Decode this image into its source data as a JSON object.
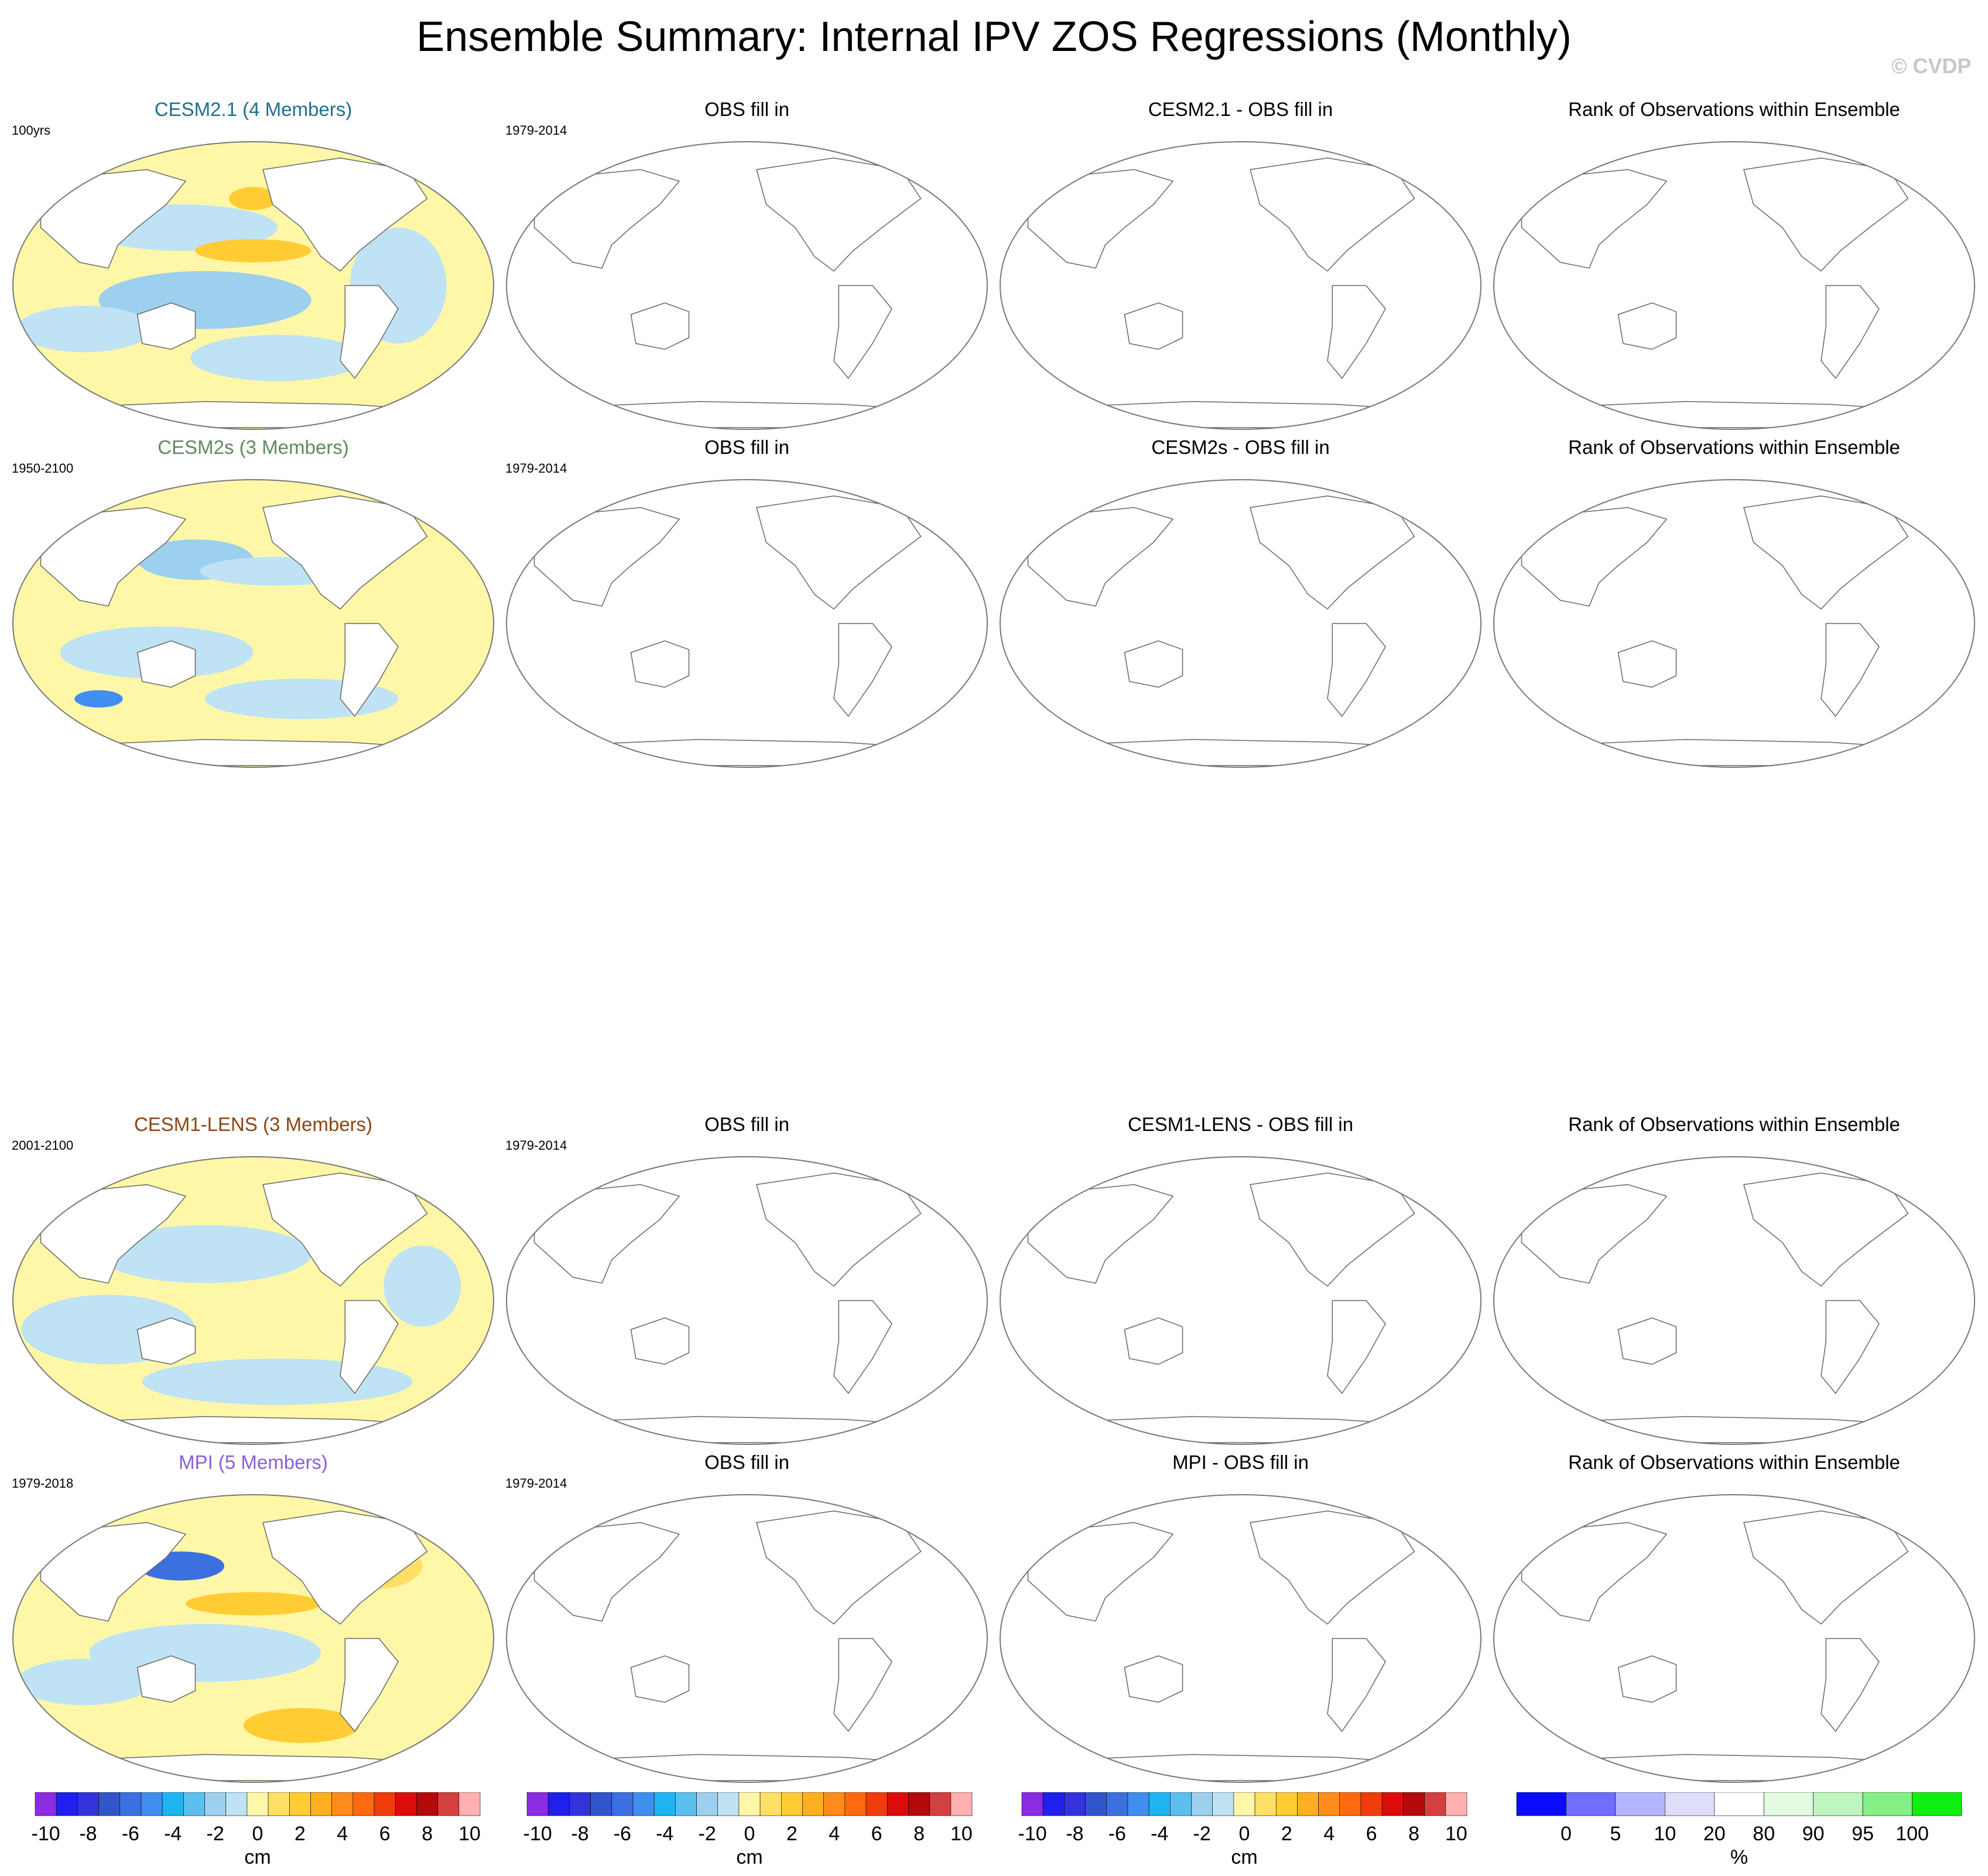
{
  "title": "Ensemble Summary: Internal IPV ZOS Regressions (Monthly)",
  "copyright": "© CVDP",
  "rows": [
    {
      "ensemble": {
        "title": "CESM2.1 (4 Members)",
        "color": "#1f6f8f",
        "period": "100yrs"
      },
      "obs": {
        "title": "OBS fill in",
        "period": "1979-2014"
      },
      "diff": {
        "title": "CESM2.1 - OBS fill in"
      },
      "rank": {
        "title": "Rank of Observations within Ensemble"
      }
    },
    {
      "ensemble": {
        "title": "CESM2s (3 Members)",
        "color": "#5f8a62",
        "period": "1950-2100"
      },
      "obs": {
        "title": "OBS fill in",
        "period": "1979-2014"
      },
      "diff": {
        "title": "CESM2s - OBS fill in"
      },
      "rank": {
        "title": "Rank of Observations within Ensemble"
      }
    },
    {
      "ensemble": {
        "title": "CESM1-LENS (3 Members)",
        "color": "#8b4513",
        "period": "2001-2100"
      },
      "obs": {
        "title": "OBS fill in",
        "period": "1979-2014"
      },
      "diff": {
        "title": "CESM1-LENS - OBS fill in"
      },
      "rank": {
        "title": "Rank of Observations within Ensemble"
      }
    },
    {
      "ensemble": {
        "title": "MPI (5 Members)",
        "color": "#8a5fd6",
        "period": "1979-2018"
      },
      "obs": {
        "title": "OBS fill in",
        "period": "1979-2014"
      },
      "diff": {
        "title": "MPI - OBS fill in"
      },
      "rank": {
        "title": "Rank of Observations within Ensemble"
      }
    }
  ],
  "colorbar_cm": {
    "unit": "cm",
    "tick_labels": [
      "-10",
      "-8",
      "-6",
      "-4",
      "-2",
      "0",
      "2",
      "4",
      "6",
      "8",
      "10"
    ],
    "colors": [
      "#8b2be2",
      "#2020ee",
      "#3333dd",
      "#3355cc",
      "#3c6fe0",
      "#3f8ef0",
      "#1eb4f0",
      "#5cc0ee",
      "#9dd0ee",
      "#bfe3f5",
      "#fff7a8",
      "#ffe066",
      "#ffcc33",
      "#ffb020",
      "#ff8c1a",
      "#ff6a10",
      "#f03c0a",
      "#dd0c0c",
      "#b50a0a",
      "#d44040",
      "#ffb0b0"
    ]
  },
  "colorbar_rank": {
    "unit": "%",
    "tick_labels": [
      "0",
      "5",
      "10",
      "20",
      "80",
      "90",
      "95",
      "100"
    ],
    "colors": [
      "#0a0aff",
      "#6e6eff",
      "#b5b5ff",
      "#dedefa",
      "#ffffff",
      "#e2fbe2",
      "#bff5bf",
      "#85f085",
      "#10f010"
    ]
  }
}
